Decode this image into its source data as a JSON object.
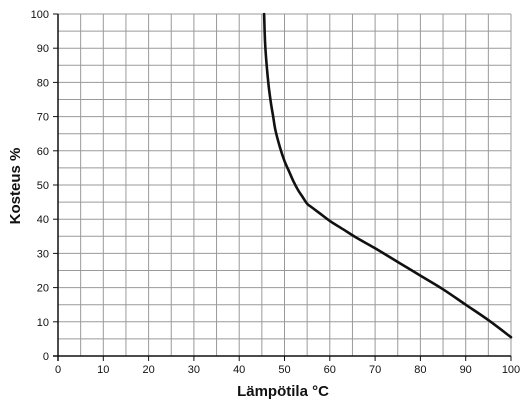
{
  "chart_data": {
    "type": "line",
    "xlabel": "Lämpötila °C",
    "ylabel": "Kosteus %",
    "xlim": [
      0,
      100
    ],
    "ylim": [
      0,
      100
    ],
    "x_ticks": [
      0,
      10,
      20,
      30,
      40,
      50,
      60,
      70,
      80,
      90,
      100
    ],
    "y_ticks": [
      0,
      10,
      20,
      30,
      40,
      50,
      60,
      70,
      80,
      90,
      100
    ],
    "x_minor_step": 5,
    "y_minor_step": 5,
    "grid": true,
    "colors": {
      "grid": "#9a9a9a",
      "line": "#111111",
      "axis": "#111111"
    },
    "series": [
      {
        "x": [
          45.5,
          45.7,
          46,
          46.5,
          47,
          47.5,
          48,
          49,
          50,
          51,
          52,
          53,
          54,
          55,
          56,
          58,
          60,
          63,
          66,
          70,
          75,
          80,
          85,
          90,
          95,
          100
        ],
        "y": [
          100,
          92,
          86,
          79,
          74,
          70,
          66,
          61,
          57,
          54,
          51,
          48.5,
          46.5,
          44.5,
          43.5,
          41.5,
          39.5,
          37,
          34.5,
          31.5,
          27.5,
          23.5,
          19.5,
          15,
          10.5,
          5.5
        ]
      }
    ]
  }
}
